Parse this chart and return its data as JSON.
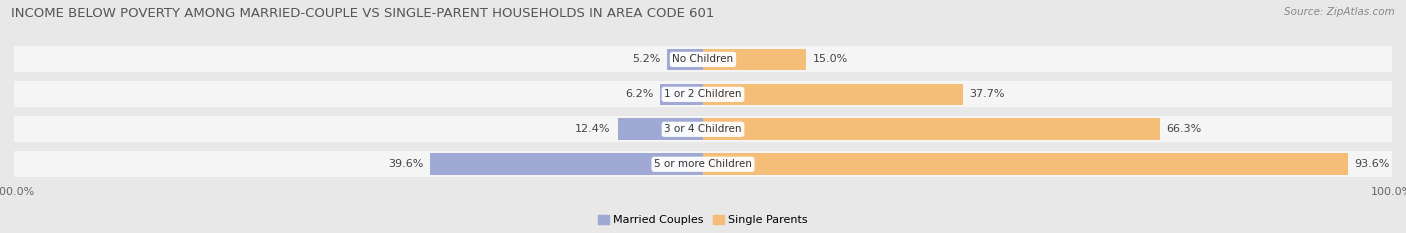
{
  "title": "INCOME BELOW POVERTY AMONG MARRIED-COUPLE VS SINGLE-PARENT HOUSEHOLDS IN AREA CODE 601",
  "source": "Source: ZipAtlas.com",
  "categories": [
    "No Children",
    "1 or 2 Children",
    "3 or 4 Children",
    "5 or more Children"
  ],
  "married_values": [
    5.2,
    6.2,
    12.4,
    39.6
  ],
  "single_values": [
    15.0,
    37.7,
    66.3,
    93.6
  ],
  "married_color": "#a0a8d4",
  "single_color": "#f5be78",
  "bar_bg_color": "#ebebeb",
  "row_bg_color": "#f5f5f5",
  "fig_bg_color": "#e8e8e8",
  "title_color": "#555555",
  "source_color": "#888888",
  "label_color": "#444444",
  "title_fontsize": 9.5,
  "source_fontsize": 7.5,
  "value_fontsize": 8,
  "cat_fontsize": 7.5,
  "legend_fontsize": 8,
  "axis_fontsize": 8,
  "max_val": 100.0,
  "axis_ticks_label": "100.0%",
  "legend_married": "Married Couples",
  "legend_single": "Single Parents"
}
